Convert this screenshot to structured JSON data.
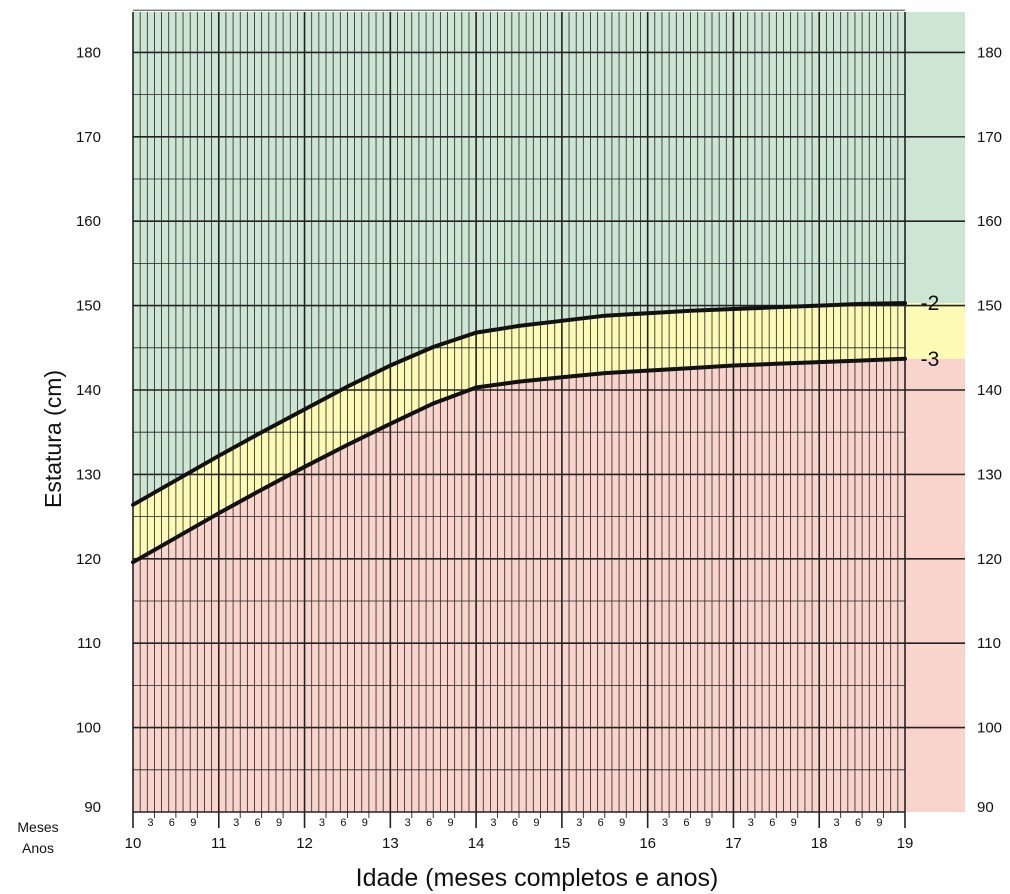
{
  "chart_data": {
    "type": "line",
    "xlabel": "Idade (meses completos e anos)",
    "ylabel": "Estatura (cm)",
    "xlim": [
      10,
      19
    ],
    "ylim": [
      90,
      185
    ],
    "y_ticks": [
      90,
      100,
      110,
      120,
      130,
      140,
      150,
      160,
      170,
      180
    ],
    "x_ticks": [
      10,
      11,
      12,
      13,
      14,
      15,
      16,
      17,
      18,
      19
    ],
    "month_ticks": [
      "3",
      "6",
      "9"
    ],
    "row_labels": {
      "months": "Meses",
      "years": "Anos"
    },
    "grid": true,
    "band_colors": {
      "above": "#cce6d3",
      "between": "#fdfab6",
      "below": "#f9d4cc",
      "line": "#111111"
    },
    "series": [
      {
        "name": "-2",
        "x": [
          10,
          10.5,
          11,
          11.5,
          12,
          12.5,
          13,
          13.5,
          14,
          14.5,
          15,
          15.5,
          16,
          16.5,
          17,
          17.5,
          18,
          18.5,
          19
        ],
        "y": [
          126.4,
          129.3,
          132.2,
          135.0,
          137.7,
          140.4,
          142.9,
          145.1,
          146.8,
          147.6,
          148.2,
          148.8,
          149.1,
          149.4,
          149.6,
          149.8,
          150.0,
          150.2,
          150.3
        ]
      },
      {
        "name": "-3",
        "x": [
          10,
          10.5,
          11,
          11.5,
          12,
          12.5,
          13,
          13.5,
          14,
          14.5,
          15,
          15.5,
          16,
          16.5,
          17,
          17.5,
          18,
          18.5,
          19
        ],
        "y": [
          119.6,
          122.5,
          125.4,
          128.2,
          130.9,
          133.5,
          136.0,
          138.4,
          140.3,
          141.0,
          141.5,
          142.0,
          142.3,
          142.6,
          142.9,
          143.1,
          143.3,
          143.5,
          143.7
        ]
      }
    ]
  }
}
